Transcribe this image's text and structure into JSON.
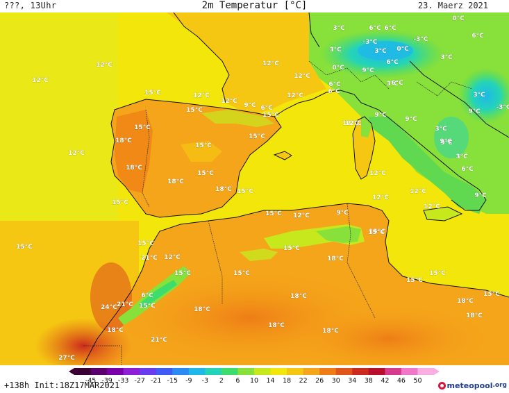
{
  "header": {
    "left": "???, 13Uhr",
    "title": "2m Temperatur [°C]",
    "right": "23. Maerz 2021"
  },
  "footer": {
    "run_info": "+138h  Init:18Z17MAR2021",
    "logo_brand": "meteopool",
    "logo_ext": ".org"
  },
  "colorbar": {
    "ticks": [
      "-45",
      "-39",
      "-33",
      "-27",
      "-21",
      "-15",
      "-9",
      "-3",
      "2",
      "6",
      "10",
      "14",
      "18",
      "22",
      "26",
      "30",
      "34",
      "38",
      "42",
      "46",
      "50"
    ],
    "colors": [
      "#3a0033",
      "#5c0070",
      "#7a00a8",
      "#8f1fd6",
      "#6a3cf0",
      "#3f5cf5",
      "#2c8bf2",
      "#1fb8e8",
      "#24d4b8",
      "#3ddc6b",
      "#88e03a",
      "#c8e81e",
      "#f2e60a",
      "#f5c712",
      "#f5a51a",
      "#ee7d16",
      "#e0551a",
      "#cc2a1c",
      "#b8102c",
      "#d63c8c",
      "#ef78c8",
      "#f8aee0"
    ]
  },
  "map_labels": [
    {
      "text": "12°C"
    },
    {
      "text": "12°C"
    },
    {
      "text": "12°C"
    },
    {
      "text": "12°C"
    },
    {
      "text": "12°C"
    },
    {
      "text": "15°C"
    },
    {
      "text": "12°C"
    },
    {
      "text": "12°C"
    },
    {
      "text": "12°C"
    },
    {
      "text": "9°C"
    },
    {
      "text": "6°C"
    },
    {
      "text": "15°C"
    },
    {
      "text": "15°C"
    },
    {
      "text": "15°C"
    },
    {
      "text": "18°C"
    },
    {
      "text": "15°C"
    },
    {
      "text": "15°C"
    },
    {
      "text": "12°C"
    },
    {
      "text": "18°C"
    },
    {
      "text": "15°C"
    },
    {
      "text": "18°C"
    },
    {
      "text": "15°C"
    },
    {
      "text": "18°C"
    },
    {
      "text": "15°C"
    },
    {
      "text": "15°C"
    },
    {
      "text": "12°C"
    },
    {
      "text": "9°C"
    },
    {
      "text": "15°C"
    },
    {
      "text": "15°C"
    },
    {
      "text": "15°C"
    },
    {
      "text": "21°C"
    },
    {
      "text": "12°C"
    },
    {
      "text": "15°C"
    },
    {
      "text": "15°C"
    },
    {
      "text": "18°C"
    },
    {
      "text": "6°C"
    },
    {
      "text": "24°C"
    },
    {
      "text": "21°C"
    },
    {
      "text": "15°C"
    },
    {
      "text": "18°C"
    },
    {
      "text": "18°C"
    },
    {
      "text": "18°C"
    },
    {
      "text": "18°C"
    },
    {
      "text": "21°C"
    },
    {
      "text": "18°C"
    },
    {
      "text": "27°C"
    },
    {
      "text": "15°C"
    },
    {
      "text": "15°C"
    },
    {
      "text": "15°C"
    },
    {
      "text": "18°C"
    },
    {
      "text": "18°C"
    },
    {
      "text": "15°C"
    },
    {
      "text": "3°C"
    },
    {
      "text": "6°C"
    },
    {
      "text": "6°C"
    },
    {
      "text": "0°C"
    },
    {
      "text": "-3°C"
    },
    {
      "text": "3°C"
    },
    {
      "text": "-3°C"
    },
    {
      "text": "3°C"
    },
    {
      "text": "0°C"
    },
    {
      "text": "6°C"
    },
    {
      "text": "3°C"
    },
    {
      "text": "0°C"
    },
    {
      "text": "6°C"
    },
    {
      "text": "9°C"
    },
    {
      "text": "3°C"
    },
    {
      "text": "6°C"
    },
    {
      "text": "6°C"
    },
    {
      "text": "3°C"
    },
    {
      "text": "9°C"
    },
    {
      "text": "-3°C"
    },
    {
      "text": "9°C"
    },
    {
      "text": "6°C"
    },
    {
      "text": "9°C"
    },
    {
      "text": "12°C"
    },
    {
      "text": "9°C"
    },
    {
      "text": "3°C"
    },
    {
      "text": "9°C"
    },
    {
      "text": "3°C"
    },
    {
      "text": "6°C"
    },
    {
      "text": "12°C"
    },
    {
      "text": "9°C"
    },
    {
      "text": "12°C"
    },
    {
      "text": "12°C"
    },
    {
      "text": "12°C"
    },
    {
      "text": "15°C"
    }
  ]
}
